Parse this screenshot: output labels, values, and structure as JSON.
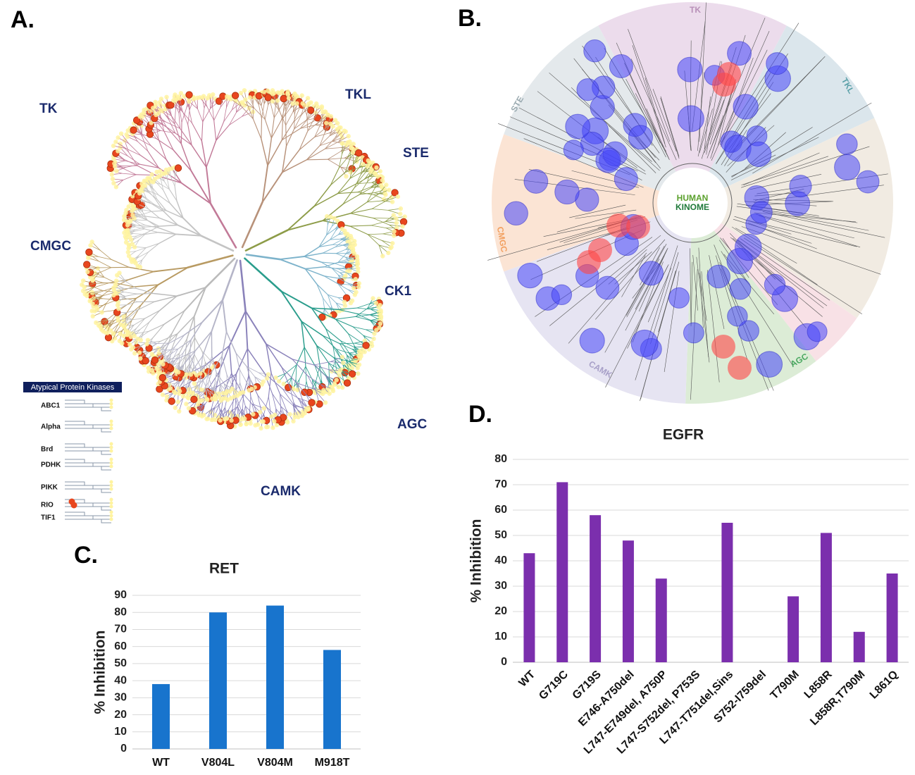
{
  "panel_labels": [
    "A.",
    "B.",
    "C.",
    "D."
  ],
  "kinome_a": {
    "groups": [
      "TK",
      "TKL",
      "STE",
      "CMGC",
      "CK1",
      "AGC",
      "CAMK"
    ],
    "atypical_title": "Atypical Protein Kinases",
    "atypical": [
      "ABC1",
      "Alpha",
      "Brd",
      "PDHK",
      "PIKK",
      "RIO",
      "TIF1"
    ]
  },
  "kinome_b": {
    "center": [
      "HUMAN",
      "KINOME"
    ],
    "groups": [
      "TK",
      "TKL",
      "STE",
      "CMGC",
      "CAMK",
      "AGC"
    ]
  },
  "chart_data": [
    {
      "type": "bar",
      "title": "RET",
      "ylabel": "% Inhibition",
      "categories": [
        "WT",
        "V804L",
        "V804M",
        "M918T"
      ],
      "values": [
        38,
        80,
        84,
        58
      ],
      "color": "#1874cd",
      "ylim": [
        0,
        90
      ],
      "yticks": [
        0,
        10,
        20,
        30,
        40,
        50,
        60,
        70,
        80,
        90
      ],
      "grid": true
    },
    {
      "type": "bar",
      "title": "EGFR",
      "ylabel": "% Inhibition",
      "categories": [
        "WT",
        "G719C",
        "G719S",
        "E746-A750del",
        "L747-E749del, A750P",
        "L747-S752del, P753S",
        "L747-T751del,Sins",
        "S752-I759del",
        "T790M",
        "L858R",
        "L858R,T790M",
        "L861Q"
      ],
      "values": [
        43,
        71,
        58,
        48,
        33,
        0,
        55,
        0,
        26,
        51,
        12,
        35
      ],
      "color": "#7b2fad",
      "ylim": [
        0,
        80
      ],
      "yticks": [
        0,
        10,
        20,
        30,
        40,
        50,
        60,
        70,
        80
      ],
      "grid": true
    }
  ]
}
